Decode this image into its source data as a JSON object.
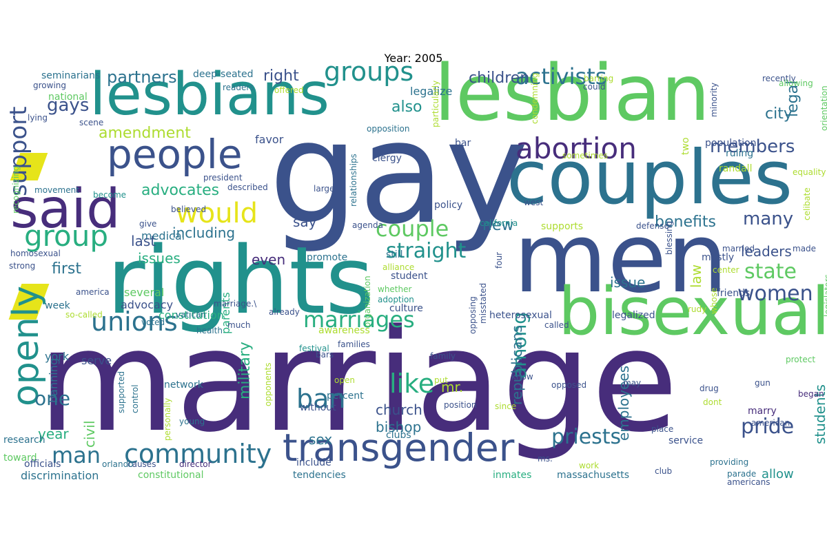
{
  "title": "Year: 2005",
  "palette": {
    "dark_purple": "#472d7b",
    "indigo": "#3b528b",
    "blue": "#2c728e",
    "teal": "#21918c",
    "green": "#28ae80",
    "light_green": "#5ec962",
    "lime": "#addc30",
    "yellow": "#e6e41a"
  },
  "words": [
    {
      "t": "marriage",
      "c": "#472d7b"
    },
    {
      "t": "gay",
      "c": "#3b528b"
    },
    {
      "t": "men",
      "c": "#3b528b"
    },
    {
      "t": "rights",
      "c": "#21918c"
    },
    {
      "t": "lesbian",
      "c": "#5ec962"
    },
    {
      "t": "lesbians",
      "c": "#21918c"
    },
    {
      "t": "couples",
      "c": "#2c728e"
    },
    {
      "t": "bisexual",
      "c": "#5ec962"
    },
    {
      "t": "said",
      "c": "#472d7b"
    },
    {
      "t": "transgender",
      "c": "#3b528b"
    },
    {
      "t": "people",
      "c": "#3b528b"
    },
    {
      "t": "openly",
      "c": "#21918c"
    },
    {
      "t": "unions",
      "c": "#2c728e"
    },
    {
      "t": "group",
      "c": "#28ae80"
    },
    {
      "t": "abortion",
      "c": "#472d7b"
    },
    {
      "t": "community",
      "c": "#2c728e"
    },
    {
      "t": "support",
      "c": "#3b528b"
    },
    {
      "t": "marriages",
      "c": "#28ae80"
    },
    {
      "t": "ban",
      "c": "#2c728e"
    },
    {
      "t": "man",
      "c": "#2c728e"
    },
    {
      "t": "would",
      "c": "#e6e41a"
    },
    {
      "t": "like",
      "c": "#28ae80"
    },
    {
      "t": "groups",
      "c": "#21918c"
    },
    {
      "t": "activists",
      "c": "#2c728e"
    },
    {
      "t": "couple",
      "c": "#5ec962"
    },
    {
      "t": "priests",
      "c": "#2c728e"
    },
    {
      "t": "pride",
      "c": "#3b528b"
    },
    {
      "t": "straight",
      "c": "#21918c"
    },
    {
      "t": "state",
      "c": "#5ec962"
    },
    {
      "t": "women",
      "c": "#3b528b"
    },
    {
      "t": "members",
      "c": "#3b528b"
    },
    {
      "t": "among",
      "c": "#21918c"
    },
    {
      "t": "many",
      "c": "#3b528b"
    },
    {
      "t": "gays",
      "c": "#3b528b"
    },
    {
      "t": "partners",
      "c": "#2c728e"
    },
    {
      "t": "children",
      "c": "#3b528b"
    },
    {
      "t": "advocates",
      "c": "#28ae80"
    },
    {
      "t": "amendment",
      "c": "#addc30"
    },
    {
      "t": "one",
      "c": "#2c728e"
    },
    {
      "t": "first",
      "c": "#2c728e"
    },
    {
      "t": "last",
      "c": "#3b528b"
    },
    {
      "t": "including",
      "c": "#2c728e"
    },
    {
      "t": "issues",
      "c": "#28ae80"
    },
    {
      "t": "new",
      "c": "#2c728e"
    },
    {
      "t": "leaders",
      "c": "#3b528b"
    },
    {
      "t": "legal",
      "c": "#2c728e"
    },
    {
      "t": "city",
      "c": "#2c728e"
    },
    {
      "t": "also",
      "c": "#21918c"
    },
    {
      "t": "right",
      "c": "#3b528b"
    },
    {
      "t": "benefits",
      "c": "#2c728e"
    },
    {
      "t": "military",
      "c": "#28ae80"
    },
    {
      "t": "employees",
      "c": "#2c728e"
    },
    {
      "t": "students",
      "c": "#21918c"
    },
    {
      "t": "republicans",
      "c": "#2c728e"
    },
    {
      "t": "church",
      "c": "#3b528b"
    },
    {
      "t": "bishop",
      "c": "#2c728e"
    },
    {
      "t": "year",
      "c": "#28ae80"
    },
    {
      "t": "sex",
      "c": "#2c728e"
    },
    {
      "t": "mr.",
      "c": "#addc30"
    },
    {
      "t": "civil",
      "c": "#5ec962"
    },
    {
      "t": "even",
      "c": "#472d7b"
    },
    {
      "t": "say",
      "c": "#3b528b"
    },
    {
      "t": "issue",
      "c": "#2c728e"
    },
    {
      "t": "law",
      "c": "#addc30"
    },
    {
      "t": "allow",
      "c": "#21918c"
    },
    {
      "t": "legalize",
      "c": "#2c728e"
    },
    {
      "t": "parents",
      "c": "#28ae80"
    },
    {
      "t": "banning",
      "c": "#2c728e"
    },
    {
      "t": "favor",
      "c": "#3b528b"
    },
    {
      "t": "york",
      "c": "#2c728e"
    },
    {
      "t": "medical",
      "c": "#2c728e"
    },
    {
      "t": "serve",
      "c": "#3b528b"
    },
    {
      "t": "several",
      "c": "#5ec962"
    },
    {
      "t": "advocacy",
      "c": "#3b528b"
    },
    {
      "t": "week",
      "c": "#2c728e"
    },
    {
      "t": "constitution",
      "c": "#28ae80"
    },
    {
      "t": "discrimination",
      "c": "#2c728e"
    },
    {
      "t": "constitutional",
      "c": "#5ec962"
    },
    {
      "t": "network",
      "c": "#2c728e"
    },
    {
      "t": "research",
      "c": "#2c728e"
    },
    {
      "t": "toward",
      "c": "#5ec962"
    },
    {
      "t": "officials",
      "c": "#3b528b"
    },
    {
      "t": "include",
      "c": "#3b528b"
    },
    {
      "t": "tendencies",
      "c": "#2c728e"
    },
    {
      "t": "inmates",
      "c": "#28ae80"
    },
    {
      "t": "massachusetts",
      "c": "#2c728e"
    },
    {
      "t": "service",
      "c": "#3b528b"
    },
    {
      "t": "marry",
      "c": "#472d7b"
    },
    {
      "t": "friends",
      "c": "#3b528b"
    },
    {
      "t": "heterosexual",
      "c": "#3b528b"
    },
    {
      "t": "legalized",
      "c": "#3b528b"
    },
    {
      "t": "culture",
      "c": "#3b528b"
    },
    {
      "t": "awareness",
      "c": "#addc30"
    },
    {
      "t": "percent",
      "c": "#2c728e"
    },
    {
      "t": "without",
      "c": "#3b528b"
    },
    {
      "t": "clubs",
      "c": "#2c728e"
    },
    {
      "t": "still",
      "c": "#2c728e"
    },
    {
      "t": "promote",
      "c": "#2c728e"
    },
    {
      "t": "student",
      "c": "#3b528b"
    },
    {
      "t": "supports",
      "c": "#addc30"
    },
    {
      "t": "policy",
      "c": "#3b528b"
    },
    {
      "t": "bar",
      "c": "#3b528b"
    },
    {
      "t": "clergy",
      "c": "#3b528b"
    },
    {
      "t": "population",
      "c": "#3b528b"
    },
    {
      "t": "ruling",
      "c": "#2c728e"
    },
    {
      "t": "two",
      "c": "#addc30"
    },
    {
      "t": "randall",
      "c": "#addc30"
    },
    {
      "t": "mostly",
      "c": "#3b528b"
    },
    {
      "t": "deep-seated",
      "c": "#2c728e"
    },
    {
      "t": "seminarians",
      "c": "#2c728e"
    },
    {
      "t": "national",
      "c": "#5ec962"
    },
    {
      "t": "growing",
      "c": "#3b528b"
    },
    {
      "t": "lying",
      "c": "#3b528b"
    },
    {
      "t": "readers",
      "c": "#2c728e"
    },
    {
      "t": "offered",
      "c": "#addc30"
    },
    {
      "t": "scene",
      "c": "#3b528b"
    },
    {
      "t": "opposition",
      "c": "#2c728e"
    },
    {
      "t": "president",
      "c": "#3b528b"
    },
    {
      "t": "described",
      "c": "#3b528b"
    },
    {
      "t": "movement",
      "c": "#2c728e"
    },
    {
      "t": "become",
      "c": "#21918c"
    },
    {
      "t": "large",
      "c": "#3b528b"
    },
    {
      "t": "believed",
      "c": "#3b528b"
    },
    {
      "t": "give",
      "c": "#3b528b"
    },
    {
      "t": "homosexual",
      "c": "#3b528b"
    },
    {
      "t": "strong",
      "c": "#3b528b"
    },
    {
      "t": "america",
      "c": "#3b528b"
    },
    {
      "t": "voted",
      "c": "#2c728e"
    },
    {
      "t": "so-called",
      "c": "#addc30"
    },
    {
      "t": "health",
      "c": "#2c728e"
    },
    {
      "t": "vatican",
      "c": "#2c728e"
    },
    {
      "t": "much",
      "c": "#3b528b"
    },
    {
      "t": "already",
      "c": "#3b528b"
    },
    {
      "t": "festival",
      "c": "#21918c"
    },
    {
      "t": "bars",
      "c": "#3b528b"
    },
    {
      "t": "families",
      "c": "#3b528b"
    },
    {
      "t": "family",
      "c": "#3b528b"
    },
    {
      "t": "put",
      "c": "#addc30"
    },
    {
      "t": "open",
      "c": "#addc30"
    },
    {
      "t": "position",
      "c": "#3b528b"
    },
    {
      "t": "since",
      "c": "#addc30"
    },
    {
      "t": "young",
      "c": "#2c728e"
    },
    {
      "t": "causes",
      "c": "#3b528b"
    },
    {
      "t": "orlando",
      "c": "#2c728e"
    },
    {
      "t": "director",
      "c": "#472d7b"
    },
    {
      "t": "ms.",
      "c": "#3b528b"
    },
    {
      "t": "work",
      "c": "#addc30"
    },
    {
      "t": "club",
      "c": "#3b528b"
    },
    {
      "t": "providing",
      "c": "#2c728e"
    },
    {
      "t": "parade",
      "c": "#2c728e"
    },
    {
      "t": "americans",
      "c": "#3b528b"
    },
    {
      "t": "american",
      "c": "#3b528b"
    },
    {
      "t": "place",
      "c": "#3b528b"
    },
    {
      "t": "drug",
      "c": "#3b528b"
    },
    {
      "t": "dont",
      "c": "#addc30"
    },
    {
      "t": "gun",
      "c": "#3b528b"
    },
    {
      "t": "began",
      "c": "#472d7b"
    },
    {
      "t": "protect",
      "c": "#5ec962"
    },
    {
      "t": "may",
      "c": "#3b528b"
    },
    {
      "t": "called",
      "c": "#3b528b"
    },
    {
      "t": "know",
      "c": "#3b528b"
    },
    {
      "t": "opposed",
      "c": "#3b528b"
    },
    {
      "t": "whether",
      "c": "#5ec962"
    },
    {
      "t": "adoption",
      "c": "#21918c"
    },
    {
      "t": "alliance",
      "c": "#addc30"
    },
    {
      "t": "west",
      "c": "#3b528b"
    },
    {
      "t": "california",
      "c": "#21918c"
    },
    {
      "t": "agenda",
      "c": "#3b528b"
    },
    {
      "t": "defense",
      "c": "#3b528b"
    },
    {
      "t": "married",
      "c": "#3b528b"
    },
    {
      "t": "made",
      "c": "#3b528b"
    },
    {
      "t": "rudy",
      "c": "#addc30"
    },
    {
      "t": "whose",
      "c": "#addc30"
    },
    {
      "t": "center",
      "c": "#addc30"
    },
    {
      "t": "equality",
      "c": "#addc30"
    },
    {
      "t": "celibate",
      "c": "#addc30"
    },
    {
      "t": "recently",
      "c": "#3b528b"
    },
    {
      "t": "allowing",
      "c": "#5ec962"
    },
    {
      "t": "could",
      "c": "#3b528b"
    },
    {
      "t": "barring",
      "c": "#addc30"
    },
    {
      "t": "sometimes",
      "c": "#addc30"
    },
    {
      "t": "orientation",
      "c": "#5ec962"
    },
    {
      "t": "minority",
      "c": "#3b528b"
    },
    {
      "t": "condemning",
      "c": "#addc30"
    },
    {
      "t": "legislators",
      "c": "#5ec962"
    },
    {
      "t": "blessing",
      "c": "#3b528b"
    },
    {
      "t": "four",
      "c": "#3b528b"
    },
    {
      "t": "opposing",
      "c": "#3b528b"
    },
    {
      "t": "misstated",
      "c": "#3b528b"
    },
    {
      "t": "particularly",
      "c": "#addc30"
    },
    {
      "t": "relationships",
      "c": "#2c728e"
    },
    {
      "t": "organization",
      "c": "#5ec962"
    },
    {
      "t": "recognizing",
      "c": "#5ec962"
    },
    {
      "t": "personally",
      "c": "#addc30"
    },
    {
      "t": "supported",
      "c": "#2c728e"
    },
    {
      "t": "control",
      "c": "#2c728e"
    },
    {
      "t": "opponents",
      "c": "#addc30"
    },
    {
      "t": "marriage.\\",
      "c": "#3b528b"
    }
  ]
}
